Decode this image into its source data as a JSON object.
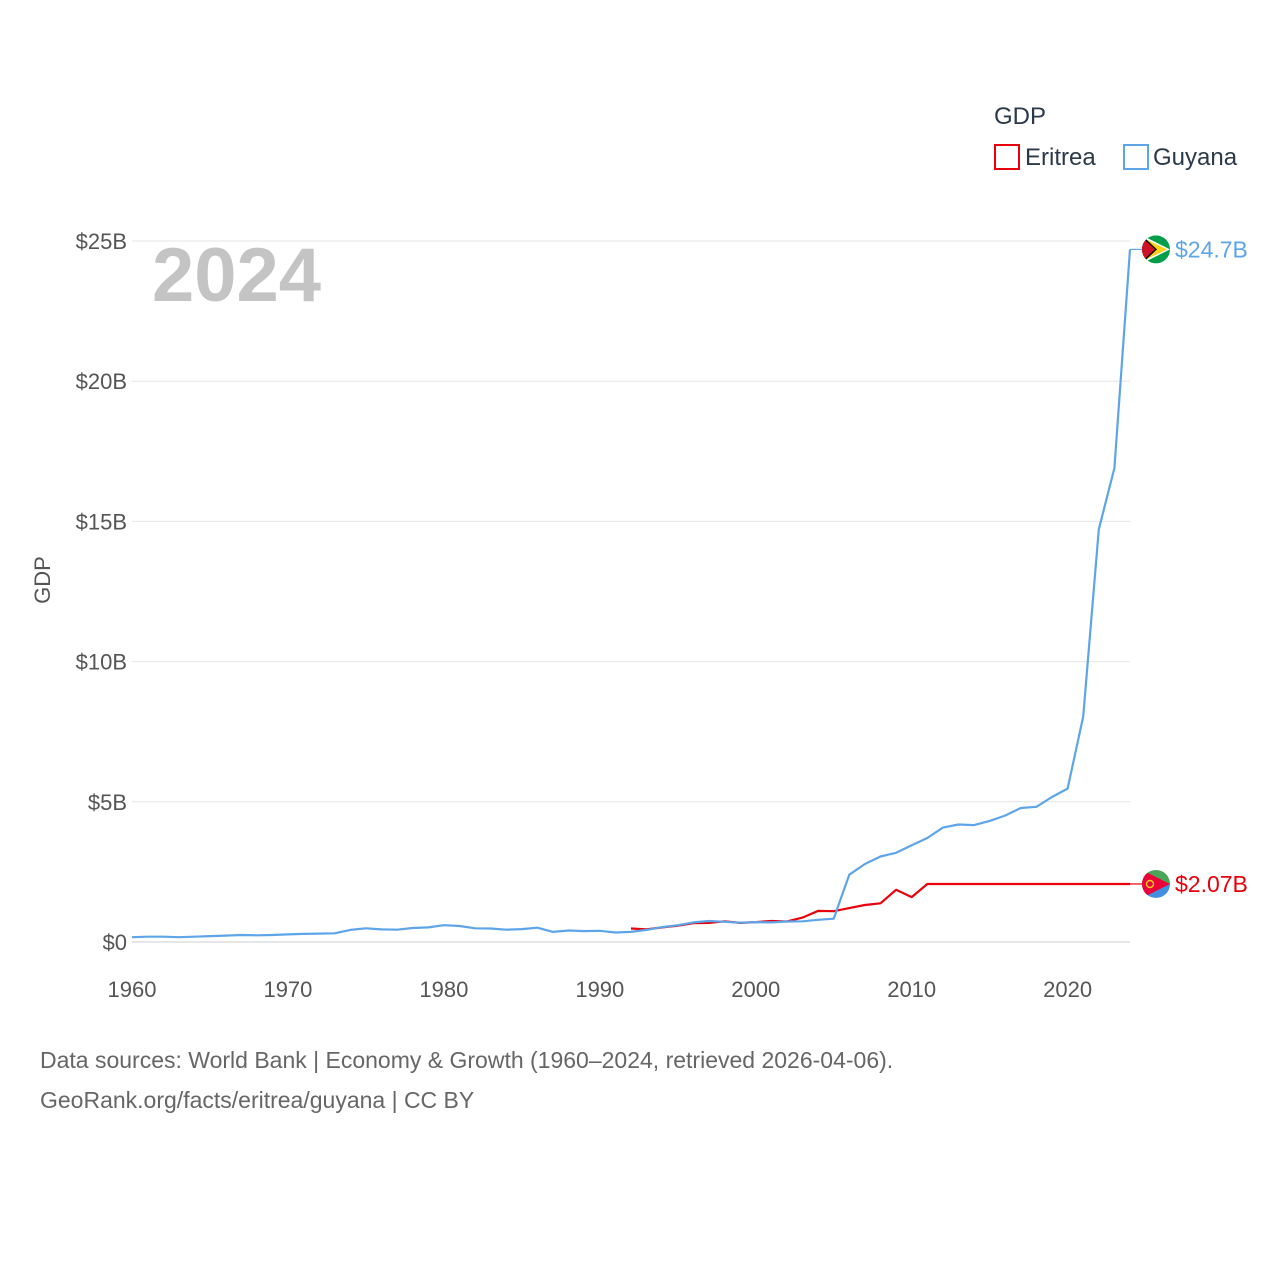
{
  "chart_data": {
    "type": "line",
    "title": "GDP",
    "ylabel": "GDP",
    "xlabel": "",
    "year_label": "2024",
    "xlim": [
      1960,
      2024
    ],
    "ylim": [
      0,
      25
    ],
    "x_ticks": [
      1960,
      1970,
      1980,
      1990,
      2000,
      2010,
      2020
    ],
    "x_tick_labels": [
      "1960",
      "1970",
      "1980",
      "1990",
      "2000",
      "2010",
      "2020"
    ],
    "y_ticks": [
      0,
      5,
      10,
      15,
      20,
      25
    ],
    "y_tick_labels": [
      "$0",
      "$5B",
      "$10B",
      "$15B",
      "$20B",
      "$25B"
    ],
    "legend": {
      "title": "GDP",
      "position": "top-right"
    },
    "series": [
      {
        "name": "Eritrea",
        "color": "#e8000b",
        "end_label": "$2.07B",
        "flag_icon": "eritrea-flag-icon",
        "x": [
          1992,
          1993,
          1994,
          1995,
          1996,
          1997,
          1998,
          1999,
          2000,
          2001,
          2002,
          2003,
          2004,
          2005,
          2006,
          2007,
          2008,
          2009,
          2010,
          2011,
          2024
        ],
        "values": [
          0.48,
          0.45,
          0.52,
          0.58,
          0.67,
          0.68,
          0.74,
          0.68,
          0.71,
          0.75,
          0.73,
          0.87,
          1.11,
          1.1,
          1.21,
          1.32,
          1.38,
          1.86,
          1.6,
          2.07,
          2.07
        ]
      },
      {
        "name": "Guyana",
        "color": "#5da5e8",
        "end_label": "$24.7B",
        "flag_icon": "guyana-flag-icon",
        "x": [
          1960,
          1961,
          1962,
          1963,
          1964,
          1965,
          1966,
          1967,
          1968,
          1969,
          1970,
          1971,
          1972,
          1973,
          1974,
          1975,
          1976,
          1977,
          1978,
          1979,
          1980,
          1981,
          1982,
          1983,
          1984,
          1985,
          1986,
          1987,
          1988,
          1989,
          1990,
          1991,
          1992,
          1993,
          1994,
          1995,
          1996,
          1997,
          1998,
          1999,
          2000,
          2001,
          2002,
          2003,
          2004,
          2005,
          2006,
          2007,
          2008,
          2009,
          2010,
          2011,
          2012,
          2013,
          2014,
          2015,
          2016,
          2017,
          2018,
          2019,
          2020,
          2021,
          2022,
          2023,
          2024
        ],
        "values": [
          0.17,
          0.19,
          0.19,
          0.17,
          0.19,
          0.21,
          0.23,
          0.25,
          0.24,
          0.25,
          0.27,
          0.29,
          0.3,
          0.31,
          0.43,
          0.49,
          0.45,
          0.44,
          0.5,
          0.52,
          0.6,
          0.57,
          0.49,
          0.48,
          0.44,
          0.46,
          0.51,
          0.36,
          0.41,
          0.39,
          0.4,
          0.34,
          0.36,
          0.43,
          0.53,
          0.6,
          0.7,
          0.75,
          0.72,
          0.69,
          0.71,
          0.7,
          0.73,
          0.74,
          0.79,
          0.83,
          2.4,
          2.78,
          3.05,
          3.18,
          3.45,
          3.71,
          4.08,
          4.19,
          4.17,
          4.32,
          4.51,
          4.78,
          4.82,
          5.17,
          5.47,
          8.04,
          14.72,
          16.9,
          24.7
        ]
      }
    ]
  },
  "footer": {
    "sources": "Data sources: World Bank | Economy & Growth (1960–2024, retrieved 2026-04-06).",
    "attribution": "GeoRank.org/facts/eritrea/guyana | CC BY"
  }
}
